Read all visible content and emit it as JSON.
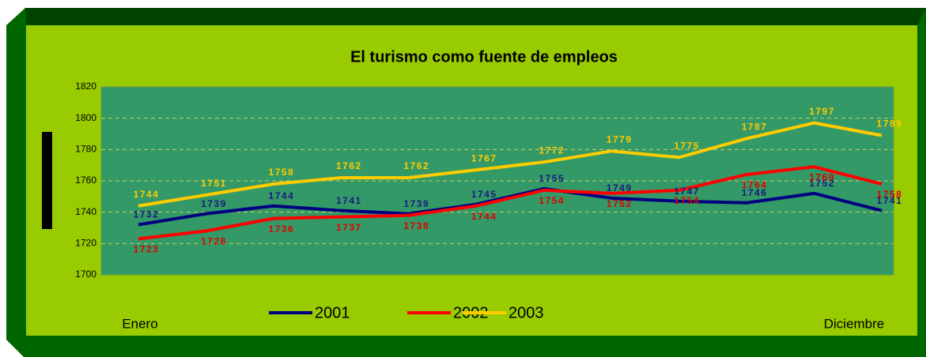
{
  "chart_data": {
    "type": "line",
    "title": "El turismo como  fuente de empleos",
    "categories": [
      "Enero",
      null,
      null,
      null,
      null,
      null,
      null,
      null,
      null,
      null,
      null,
      "Diciembre"
    ],
    "series": [
      {
        "name": "2001",
        "color": "#000080",
        "label_color": "#1a1a80",
        "values": [
          1732,
          1739,
          1744,
          1741,
          1739,
          1745,
          1755,
          1749,
          1747,
          1746,
          1752,
          1741
        ]
      },
      {
        "name": "2002",
        "color": "#ff0000",
        "label_color": "#e00000",
        "values": [
          1723,
          1728,
          1736,
          1737,
          1738,
          1744,
          1754,
          1752,
          1754,
          1764,
          1769,
          1758
        ]
      },
      {
        "name": "2003",
        "color": "#ffcc00",
        "label_color": "#ffcc00",
        "values": [
          1744,
          1751,
          1758,
          1762,
          1762,
          1767,
          1772,
          1779,
          1775,
          1787,
          1797,
          1789
        ]
      }
    ],
    "ylim": [
      1700,
      1820
    ],
    "yticks": [
      1700,
      1720,
      1740,
      1760,
      1780,
      1800,
      1820
    ],
    "grid": true
  }
}
